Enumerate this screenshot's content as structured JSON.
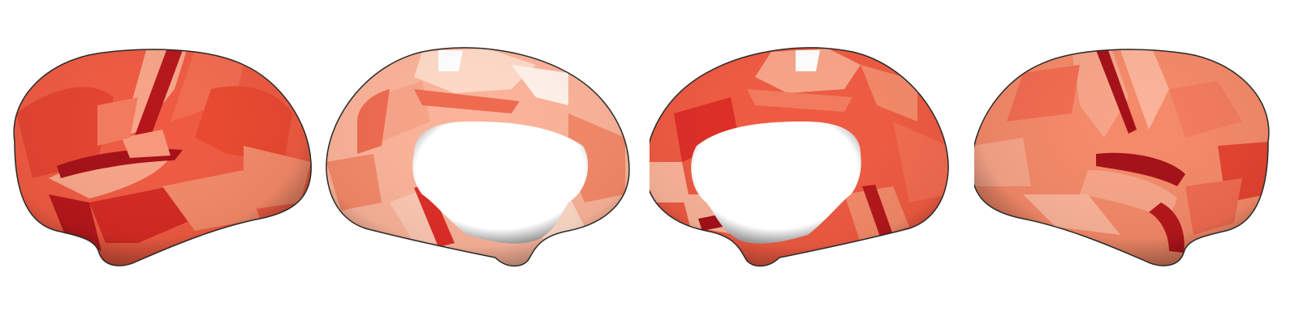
{
  "figure": {
    "background": "#ffffff",
    "colormap": "Reds",
    "colormap_stops": [
      "#fff5f0",
      "#fcbba1",
      "#fc9272",
      "#fb6a4a",
      "#de2d26",
      "#a50f15"
    ],
    "views": [
      {
        "hemisphere": "left",
        "view": "lateral"
      },
      {
        "hemisphere": "left",
        "view": "medial"
      },
      {
        "hemisphere": "right",
        "view": "medial"
      },
      {
        "hemisphere": "right",
        "view": "lateral"
      }
    ],
    "medial_wall_color": "#ffffff",
    "shadow_color": "#5a5a5a"
  }
}
